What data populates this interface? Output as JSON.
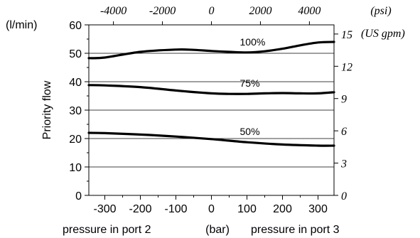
{
  "chart_data": {
    "type": "line",
    "ylabel": "Priority flow",
    "y_unit": "(l/min)",
    "ylim": [
      0,
      60
    ],
    "y_ticks": [
      "0",
      "10",
      "20",
      "30",
      "40",
      "50",
      "60"
    ],
    "xlim": [
      -345,
      345
    ],
    "x_ticks": [
      "-300",
      "-200",
      "-100",
      "0",
      "100",
      "200",
      "300"
    ],
    "x_caption": {
      "left": "pressure in port 2",
      "middle": "(bar)",
      "right": "pressure in port 3"
    },
    "top_axis": {
      "unit": "(psi)",
      "ticks": [
        "-4000",
        "-2000",
        "0",
        "2000",
        "4000"
      ]
    },
    "right_axis": {
      "unit": "(US gpm)",
      "ticks": [
        "0",
        "3",
        "6",
        "9",
        "12",
        "15"
      ]
    },
    "grid": "horizontal",
    "series": [
      {
        "name": "100%",
        "x": [
          -345,
          -300,
          -200,
          -100,
          -50,
          0,
          50,
          100,
          150,
          200,
          250,
          300,
          345
        ],
        "y": [
          48.3,
          48.5,
          50.5,
          51.3,
          51.2,
          50.8,
          50.5,
          50.3,
          50.7,
          51.6,
          52.8,
          53.8,
          54.0
        ]
      },
      {
        "name": "75%",
        "x": [
          -345,
          -300,
          -200,
          -100,
          0,
          50,
          100,
          150,
          200,
          250,
          300,
          345
        ],
        "y": [
          38.8,
          38.7,
          38.1,
          36.9,
          35.9,
          35.7,
          35.7,
          35.9,
          36.0,
          35.9,
          35.9,
          36.3
        ]
      },
      {
        "name": "50%",
        "x": [
          -345,
          -300,
          -200,
          -100,
          0,
          100,
          200,
          300,
          345
        ],
        "y": [
          22.0,
          21.9,
          21.4,
          20.7,
          19.8,
          18.7,
          17.9,
          17.5,
          17.5
        ]
      }
    ]
  }
}
